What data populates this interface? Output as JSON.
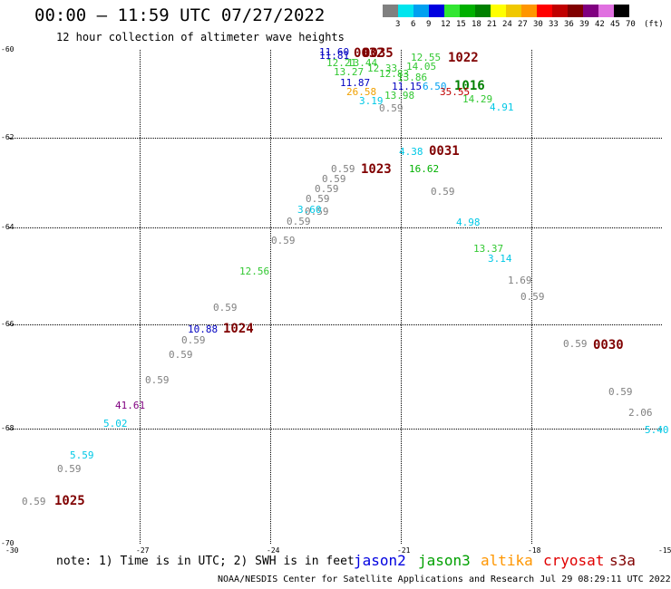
{
  "header": {
    "title": "00:00 — 11:59 UTC 07/27/2022",
    "subtitle": "12 hour collection of altimeter wave heights"
  },
  "colorbar": {
    "colors": [
      "#808080",
      "#00e5ee",
      "#00a0f0",
      "#0000e0",
      "#32e632",
      "#00b000",
      "#008000",
      "#ffff00",
      "#f0c800",
      "#ff9600",
      "#ff0000",
      "#c00000",
      "#800000",
      "#800080",
      "#e070e0",
      "#000000"
    ],
    "labels": [
      "3",
      "6",
      "9",
      "12",
      "15",
      "18",
      "21",
      "24",
      "27",
      "30",
      "33",
      "36",
      "39",
      "42",
      "45",
      "70",
      "(ft)"
    ]
  },
  "axes": {
    "lon_ticks": [
      "-30",
      "-27",
      "-24",
      "-21",
      "-18",
      "-15"
    ],
    "lat_ticks": [
      "-60",
      "-62",
      "-64",
      "-66",
      "-68",
      "-70"
    ]
  },
  "observations": [
    {
      "t": "11.60",
      "c": "#0000c0"
    },
    {
      "t": "0032",
      "c": "#800000",
      "h": true
    },
    {
      "t": "0035",
      "c": "#800000",
      "h": true
    },
    {
      "t": "11.81",
      "c": "#0000c0"
    },
    {
      "t": "12.21",
      "c": "#32c832"
    },
    {
      "t": "13.44",
      "c": "#32c832"
    },
    {
      "t": "12.55",
      "c": "#32c832"
    },
    {
      "t": "1022",
      "c": "#800000",
      "h": true
    },
    {
      "t": "13.27",
      "c": "#32c832"
    },
    {
      "t": "12.33",
      "c": "#32c832"
    },
    {
      "t": "14.05",
      "c": "#32c832"
    },
    {
      "t": "12.83",
      "c": "#32c832"
    },
    {
      "t": "13.86",
      "c": "#32c832"
    },
    {
      "t": "11.87",
      "c": "#0000c0"
    },
    {
      "t": "11.15",
      "c": "#0000c0"
    },
    {
      "t": "6.50",
      "c": "#00a0f0"
    },
    {
      "t": "1016",
      "c": "#008000",
      "h": true
    },
    {
      "t": "26.58",
      "c": "#f0a000"
    },
    {
      "t": "13.98",
      "c": "#32c832"
    },
    {
      "t": "35.55",
      "c": "#c00000"
    },
    {
      "t": "14.29",
      "c": "#32c832"
    },
    {
      "t": "3.19",
      "c": "#00c8e6"
    },
    {
      "t": "0.59",
      "c": "#808080"
    },
    {
      "t": "4.91",
      "c": "#00c8e6"
    },
    {
      "t": "4.38",
      "c": "#00c8e6"
    },
    {
      "t": "0031",
      "c": "#800000",
      "h": true
    },
    {
      "t": "0.59",
      "c": "#808080"
    },
    {
      "t": "1023",
      "c": "#800000",
      "h": true
    },
    {
      "t": "16.62",
      "c": "#00b000"
    },
    {
      "t": "0.59",
      "c": "#808080"
    },
    {
      "t": "0.59",
      "c": "#808080"
    },
    {
      "t": "0.59",
      "c": "#808080"
    },
    {
      "t": "0.59",
      "c": "#808080"
    },
    {
      "t": "0.59",
      "c": "#808080"
    },
    {
      "t": "3.60",
      "c": "#00c8e6"
    },
    {
      "t": "0.59",
      "c": "#808080"
    },
    {
      "t": "4.98",
      "c": "#00c8e6"
    },
    {
      "t": "0.59",
      "c": "#808080"
    },
    {
      "t": "13.37",
      "c": "#32c832"
    },
    {
      "t": "3.14",
      "c": "#00c8e6"
    },
    {
      "t": "12.56",
      "c": "#32c832"
    },
    {
      "t": "1.69",
      "c": "#808080"
    },
    {
      "t": "0.59",
      "c": "#808080"
    },
    {
      "t": "0.59",
      "c": "#808080"
    },
    {
      "t": "10.88",
      "c": "#0000c0"
    },
    {
      "t": "1024",
      "c": "#800000",
      "h": true
    },
    {
      "t": "0.59",
      "c": "#808080"
    },
    {
      "t": "0.59",
      "c": "#808080"
    },
    {
      "t": "0030",
      "c": "#800000",
      "h": true
    },
    {
      "t": "0.59",
      "c": "#808080"
    },
    {
      "t": "0.59",
      "c": "#808080"
    },
    {
      "t": "0.59",
      "c": "#808080"
    },
    {
      "t": "41.61",
      "c": "#800080"
    },
    {
      "t": "2.06",
      "c": "#808080"
    },
    {
      "t": "5.02",
      "c": "#00c8e6"
    },
    {
      "t": "5.40",
      "c": "#00c8e6"
    },
    {
      "t": "5.59",
      "c": "#00c8e6"
    },
    {
      "t": "0.59",
      "c": "#808080"
    },
    {
      "t": "0.59",
      "c": "#808080"
    },
    {
      "t": "1025",
      "c": "#800000",
      "h": true
    }
  ],
  "footer": {
    "note": "note: 1) Time is in UTC; 2) SWH is in feet",
    "legend": [
      {
        "label": "jason2",
        "color": "#0000e0"
      },
      {
        "label": "jason3",
        "color": "#00a000"
      },
      {
        "label": "altika",
        "color": "#ff9600"
      },
      {
        "label": "cryosat",
        "color": "#e00000"
      },
      {
        "label": "s3a",
        "color": "#800000"
      }
    ],
    "credit": "NOAA/NESDIS Center for Satellite Applications and Research    Jul 29 08:29:11 UTC 2022"
  }
}
